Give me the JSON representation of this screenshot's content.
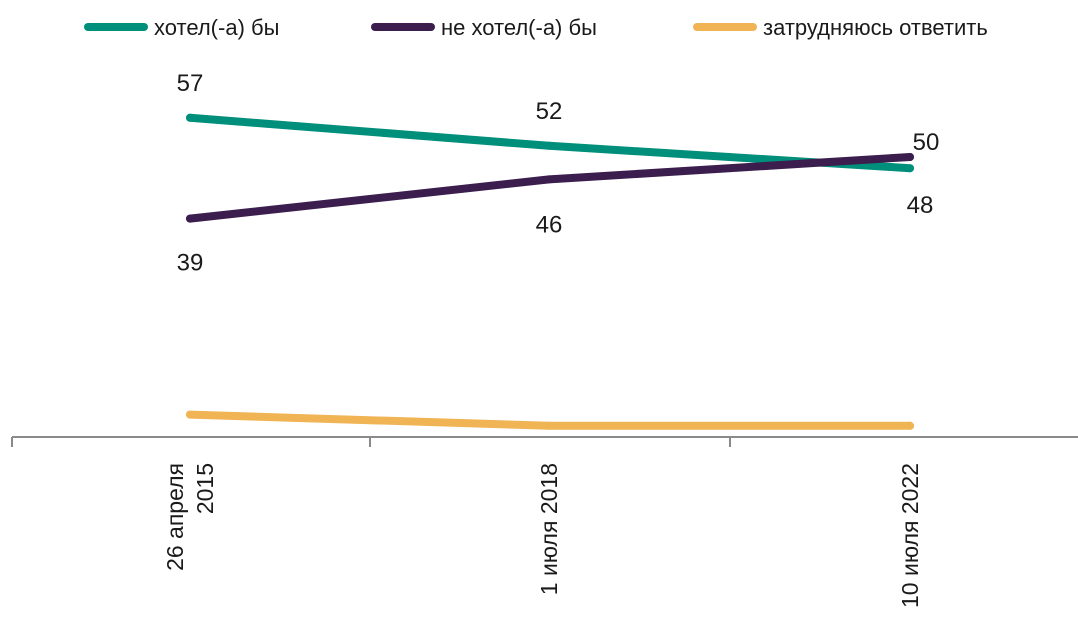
{
  "chart_data": {
    "type": "line",
    "categories": [
      [
        "26 апреля",
        "2015"
      ],
      [
        "1 июля 2018"
      ],
      [
        "10 июля 2022"
      ]
    ],
    "series": [
      {
        "name": "хотел(-а) бы",
        "values": [
          57,
          52,
          48
        ],
        "color": "#008f7a"
      },
      {
        "name": "не хотел(-а) бы",
        "values": [
          39,
          46,
          50
        ],
        "color": "#3b1e4e"
      },
      {
        "name": "затрудняюсь ответить",
        "values": [
          4,
          2,
          2
        ],
        "color": "#f0b454"
      }
    ],
    "ylim": [
      0,
      70
    ],
    "legend_position": "top",
    "grid": false
  }
}
